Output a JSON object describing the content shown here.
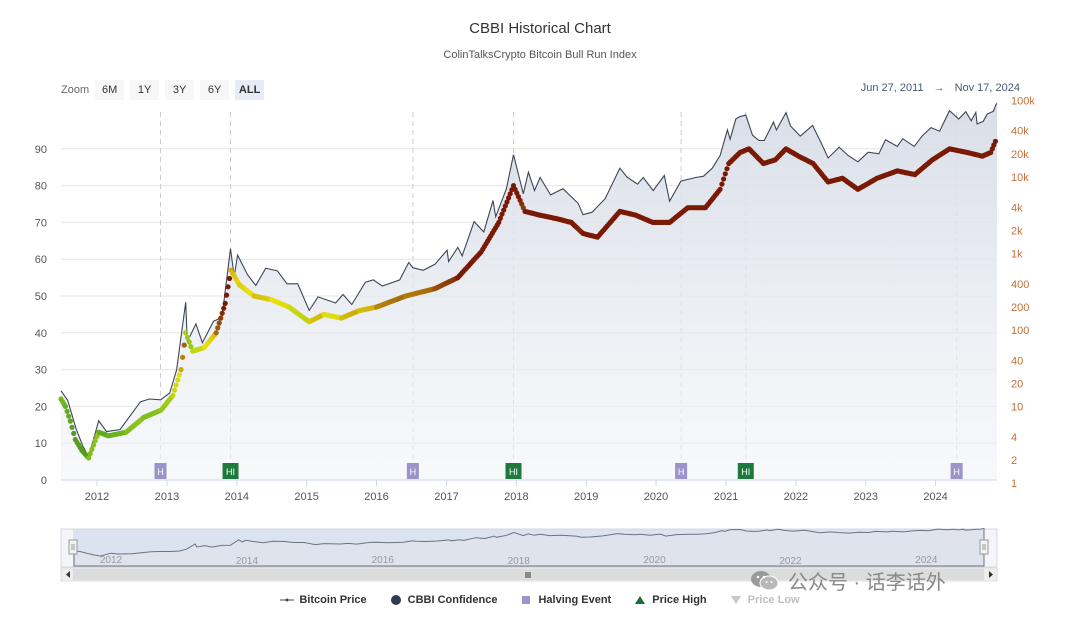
{
  "header": {
    "title": "CBBI Historical Chart",
    "subtitle": "ColinTalksCrypto Bitcoin Bull Run Index"
  },
  "zoom": {
    "label": "Zoom",
    "buttons": [
      {
        "label": "6M",
        "active": false
      },
      {
        "label": "1Y",
        "active": false
      },
      {
        "label": "3Y",
        "active": false
      },
      {
        "label": "6Y",
        "active": false
      },
      {
        "label": "ALL",
        "active": true
      }
    ]
  },
  "range": {
    "from": "Jun 27, 2011",
    "arrow": "→",
    "to": "Nov 17, 2024"
  },
  "legend": [
    {
      "label": "Bitcoin Price",
      "symbol": "line",
      "color": "#3d4556",
      "hidden": false
    },
    {
      "label": "CBBI Confidence",
      "symbol": "circle",
      "color": "#2c3e50",
      "hidden": false
    },
    {
      "label": "Halving Event",
      "symbol": "square",
      "color": "#9b93c9",
      "hidden": false
    },
    {
      "label": "Price High",
      "symbol": "triangle",
      "color": "#1e6b3a",
      "hidden": false
    },
    {
      "label": "Price Low",
      "symbol": "triangle-down",
      "color": "#c8c8c8",
      "hidden": true
    }
  ],
  "watermark": {
    "text": "公众号 · 话李话外"
  },
  "colors": {
    "price_line": "#3d4556",
    "area_fill": "#e4e8f0",
    "halving_marker": "#9b93c9",
    "high_marker": "#1e7a3c",
    "cbbi_low": "#0a5d1a",
    "cbbi_mid": "#e8e010",
    "cbbi_high": "#7a1a05",
    "right_axis": "#c0713a"
  },
  "chart_data": {
    "type": "line",
    "x_range": [
      "2011-06-27",
      "2024-11-17"
    ],
    "x_ticks": [
      "2012",
      "2013",
      "2014",
      "2015",
      "2016",
      "2017",
      "2018",
      "2019",
      "2020",
      "2021",
      "2022",
      "2023",
      "2024"
    ],
    "y_left": {
      "label": "",
      "range": [
        0,
        100
      ],
      "ticks": [
        "0",
        "10",
        "20",
        "30",
        "40",
        "50",
        "60",
        "70",
        "80",
        "90"
      ]
    },
    "y_right": {
      "label": "",
      "scale": "log",
      "range": [
        1,
        100000
      ],
      "ticks": [
        "1",
        "2",
        "4",
        "10",
        "20",
        "40",
        "100",
        "200",
        "400",
        "1k",
        "2k",
        "4k",
        "10k",
        "20k",
        "40k",
        "100k"
      ]
    },
    "series": [
      {
        "name": "Bitcoin Price",
        "axis": "right",
        "points": [
          [
            "2011-06-27",
            16
          ],
          [
            "2011-08-01",
            12
          ],
          [
            "2011-09-15",
            5
          ],
          [
            "2011-10-20",
            3
          ],
          [
            "2011-11-18",
            2.2
          ],
          [
            "2012-01-10",
            6.5
          ],
          [
            "2012-02-20",
            4.7
          ],
          [
            "2012-05-01",
            5
          ],
          [
            "2012-08-15",
            11.5
          ],
          [
            "2012-10-01",
            12.5
          ],
          [
            "2012-11-28",
            12.2
          ],
          [
            "2013-01-15",
            15
          ],
          [
            "2013-02-20",
            30
          ],
          [
            "2013-04-09",
            230
          ],
          [
            "2013-04-17",
            70
          ],
          [
            "2013-06-01",
            120
          ],
          [
            "2013-07-05",
            68
          ],
          [
            "2013-09-01",
            130
          ],
          [
            "2013-10-15",
            145
          ],
          [
            "2013-11-29",
            1150
          ],
          [
            "2013-12-18",
            500
          ],
          [
            "2014-01-05",
            950
          ],
          [
            "2014-02-25",
            530
          ],
          [
            "2014-04-10",
            380
          ],
          [
            "2014-06-01",
            640
          ],
          [
            "2014-08-01",
            590
          ],
          [
            "2014-09-20",
            400
          ],
          [
            "2014-11-15",
            400
          ],
          [
            "2015-01-14",
            180
          ],
          [
            "2015-03-01",
            270
          ],
          [
            "2015-06-01",
            225
          ],
          [
            "2015-07-10",
            290
          ],
          [
            "2015-08-25",
            215
          ],
          [
            "2015-11-04",
            420
          ],
          [
            "2015-12-15",
            450
          ],
          [
            "2016-02-01",
            375
          ],
          [
            "2016-05-01",
            450
          ],
          [
            "2016-06-17",
            760
          ],
          [
            "2016-07-09",
            650
          ],
          [
            "2016-09-01",
            600
          ],
          [
            "2016-11-01",
            720
          ],
          [
            "2017-01-04",
            1100
          ],
          [
            "2017-01-12",
            780
          ],
          [
            "2017-03-01",
            1200
          ],
          [
            "2017-03-24",
            930
          ],
          [
            "2017-05-25",
            2600
          ],
          [
            "2017-07-15",
            1900
          ],
          [
            "2017-09-01",
            4900
          ],
          [
            "2017-09-15",
            3000
          ],
          [
            "2017-11-10",
            7000
          ],
          [
            "2017-12-17",
            19500
          ],
          [
            "2018-02-06",
            6000
          ],
          [
            "2018-03-05",
            11500
          ],
          [
            "2018-04-06",
            6600
          ],
          [
            "2018-05-05",
            9800
          ],
          [
            "2018-06-29",
            5800
          ],
          [
            "2018-09-01",
            7000
          ],
          [
            "2018-11-20",
            4500
          ],
          [
            "2018-12-15",
            3200
          ],
          [
            "2019-02-01",
            3450
          ],
          [
            "2019-04-10",
            5200
          ],
          [
            "2019-06-26",
            13000
          ],
          [
            "2019-08-01",
            10000
          ],
          [
            "2019-09-26",
            8000
          ],
          [
            "2019-10-26",
            9800
          ],
          [
            "2019-12-17",
            6600
          ],
          [
            "2020-02-13",
            10400
          ],
          [
            "2020-03-12",
            4800
          ],
          [
            "2020-05-10",
            8800
          ],
          [
            "2020-07-26",
            9800
          ],
          [
            "2020-09-05",
            10200
          ],
          [
            "2020-10-21",
            13000
          ],
          [
            "2020-12-01",
            19000
          ],
          [
            "2021-01-08",
            41000
          ],
          [
            "2021-01-22",
            31000
          ],
          [
            "2021-02-21",
            57000
          ],
          [
            "2021-03-13",
            61000
          ],
          [
            "2021-04-14",
            64000
          ],
          [
            "2021-05-19",
            35000
          ],
          [
            "2021-06-22",
            29800
          ],
          [
            "2021-07-20",
            29800
          ],
          [
            "2021-09-06",
            52000
          ],
          [
            "2021-09-21",
            41000
          ],
          [
            "2021-11-10",
            69000
          ],
          [
            "2021-12-04",
            46000
          ],
          [
            "2022-01-24",
            34000
          ],
          [
            "2022-03-29",
            47000
          ],
          [
            "2022-05-12",
            28000
          ],
          [
            "2022-06-18",
            17600
          ],
          [
            "2022-08-15",
            24400
          ],
          [
            "2022-10-01",
            19000
          ],
          [
            "2022-11-21",
            15700
          ],
          [
            "2023-01-14",
            21000
          ],
          [
            "2023-03-10",
            20000
          ],
          [
            "2023-04-14",
            30500
          ],
          [
            "2023-06-15",
            25000
          ],
          [
            "2023-07-13",
            31500
          ],
          [
            "2023-09-11",
            25000
          ],
          [
            "2023-10-24",
            34500
          ],
          [
            "2023-12-08",
            44000
          ],
          [
            "2024-01-22",
            39500
          ],
          [
            "2024-03-14",
            73000
          ],
          [
            "2024-05-01",
            57000
          ],
          [
            "2024-06-07",
            71000
          ],
          [
            "2024-07-05",
            54000
          ],
          [
            "2024-07-29",
            69500
          ],
          [
            "2024-08-05",
            49000
          ],
          [
            "2024-09-06",
            53000
          ],
          [
            "2024-09-27",
            66000
          ],
          [
            "2024-10-29",
            72000
          ],
          [
            "2024-11-12",
            88000
          ],
          [
            "2024-11-17",
            91000
          ]
        ]
      },
      {
        "name": "CBBI Confidence",
        "axis": "left",
        "points": [
          [
            "2011-06-27",
            22
          ],
          [
            "2011-07-20",
            20
          ],
          [
            "2011-08-15",
            16
          ],
          [
            "2011-09-10",
            11
          ],
          [
            "2011-10-15",
            8
          ],
          [
            "2011-11-18",
            6
          ],
          [
            "2012-01-10",
            13
          ],
          [
            "2012-03-01",
            12
          ],
          [
            "2012-06-01",
            13
          ],
          [
            "2012-09-01",
            17
          ],
          [
            "2012-12-01",
            19
          ],
          [
            "2013-02-01",
            23
          ],
          [
            "2013-03-15",
            30
          ],
          [
            "2013-04-09",
            40
          ],
          [
            "2013-05-15",
            35
          ],
          [
            "2013-07-15",
            36
          ],
          [
            "2013-09-15",
            40
          ],
          [
            "2013-11-01",
            48
          ],
          [
            "2013-12-01",
            57
          ],
          [
            "2014-01-15",
            53
          ],
          [
            "2014-04-01",
            50
          ],
          [
            "2014-07-01",
            49
          ],
          [
            "2014-10-01",
            47
          ],
          [
            "2015-01-14",
            43
          ],
          [
            "2015-04-01",
            45
          ],
          [
            "2015-07-01",
            44
          ],
          [
            "2015-10-01",
            46
          ],
          [
            "2016-01-01",
            47
          ],
          [
            "2016-06-01",
            50
          ],
          [
            "2016-11-01",
            52
          ],
          [
            "2017-03-01",
            55
          ],
          [
            "2017-07-01",
            62
          ],
          [
            "2017-10-01",
            70
          ],
          [
            "2017-12-17",
            80
          ],
          [
            "2018-02-15",
            73
          ],
          [
            "2018-05-01",
            72
          ],
          [
            "2018-08-01",
            71
          ],
          [
            "2018-10-15",
            70
          ],
          [
            "2018-12-15",
            67
          ],
          [
            "2019-03-01",
            66
          ],
          [
            "2019-06-26",
            73
          ],
          [
            "2019-09-15",
            72
          ],
          [
            "2019-12-15",
            70
          ],
          [
            "2020-03-12",
            70
          ],
          [
            "2020-06-15",
            74
          ],
          [
            "2020-09-15",
            74
          ],
          [
            "2020-12-01",
            79
          ],
          [
            "2021-01-15",
            86
          ],
          [
            "2021-03-15",
            89
          ],
          [
            "2021-05-01",
            90
          ],
          [
            "2021-07-15",
            86
          ],
          [
            "2021-09-15",
            87
          ],
          [
            "2021-11-10",
            90
          ],
          [
            "2022-01-15",
            88
          ],
          [
            "2022-04-01",
            86
          ],
          [
            "2022-06-18",
            81
          ],
          [
            "2022-09-01",
            82
          ],
          [
            "2022-11-21",
            79
          ],
          [
            "2023-03-01",
            82
          ],
          [
            "2023-06-15",
            84
          ],
          [
            "2023-09-15",
            83
          ],
          [
            "2023-12-15",
            87
          ],
          [
            "2024-03-14",
            90
          ],
          [
            "2024-06-15",
            89
          ],
          [
            "2024-09-01",
            88
          ],
          [
            "2024-10-15",
            89
          ],
          [
            "2024-11-17",
            93
          ]
        ]
      }
    ],
    "halving_events": [
      "2012-11-28",
      "2016-07-09",
      "2020-05-11",
      "2024-04-20"
    ],
    "halving_label": "H",
    "price_highs": [
      "2013-11-29",
      "2017-12-17",
      "2021-04-14"
    ],
    "high_label": "HI",
    "navigator": {
      "x_ticks": [
        "2012",
        "2014",
        "2016",
        "2018",
        "2020",
        "2022",
        "2024"
      ]
    }
  }
}
